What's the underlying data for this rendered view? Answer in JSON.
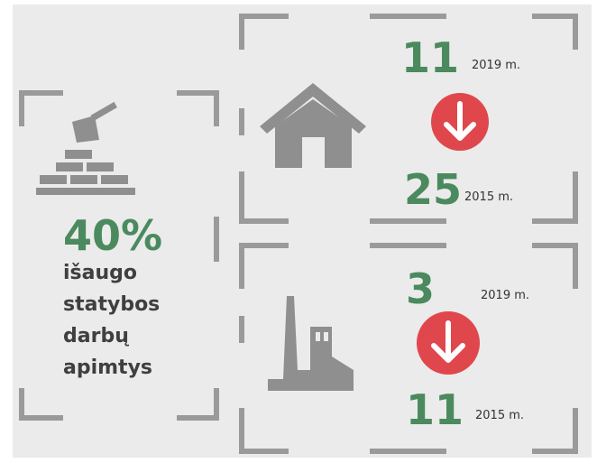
{
  "left": {
    "value": "40%",
    "lines": [
      "išaugo",
      "statybos",
      "darbų",
      "apimtys"
    ]
  },
  "panels": [
    {
      "top": {
        "value": "11",
        "year": "2019 m."
      },
      "bottom": {
        "value": "25",
        "year": "2015 m."
      }
    },
    {
      "top": {
        "value": "3",
        "year": "2019 m."
      },
      "bottom": {
        "value": "11",
        "year": "2015 m."
      }
    }
  ]
}
